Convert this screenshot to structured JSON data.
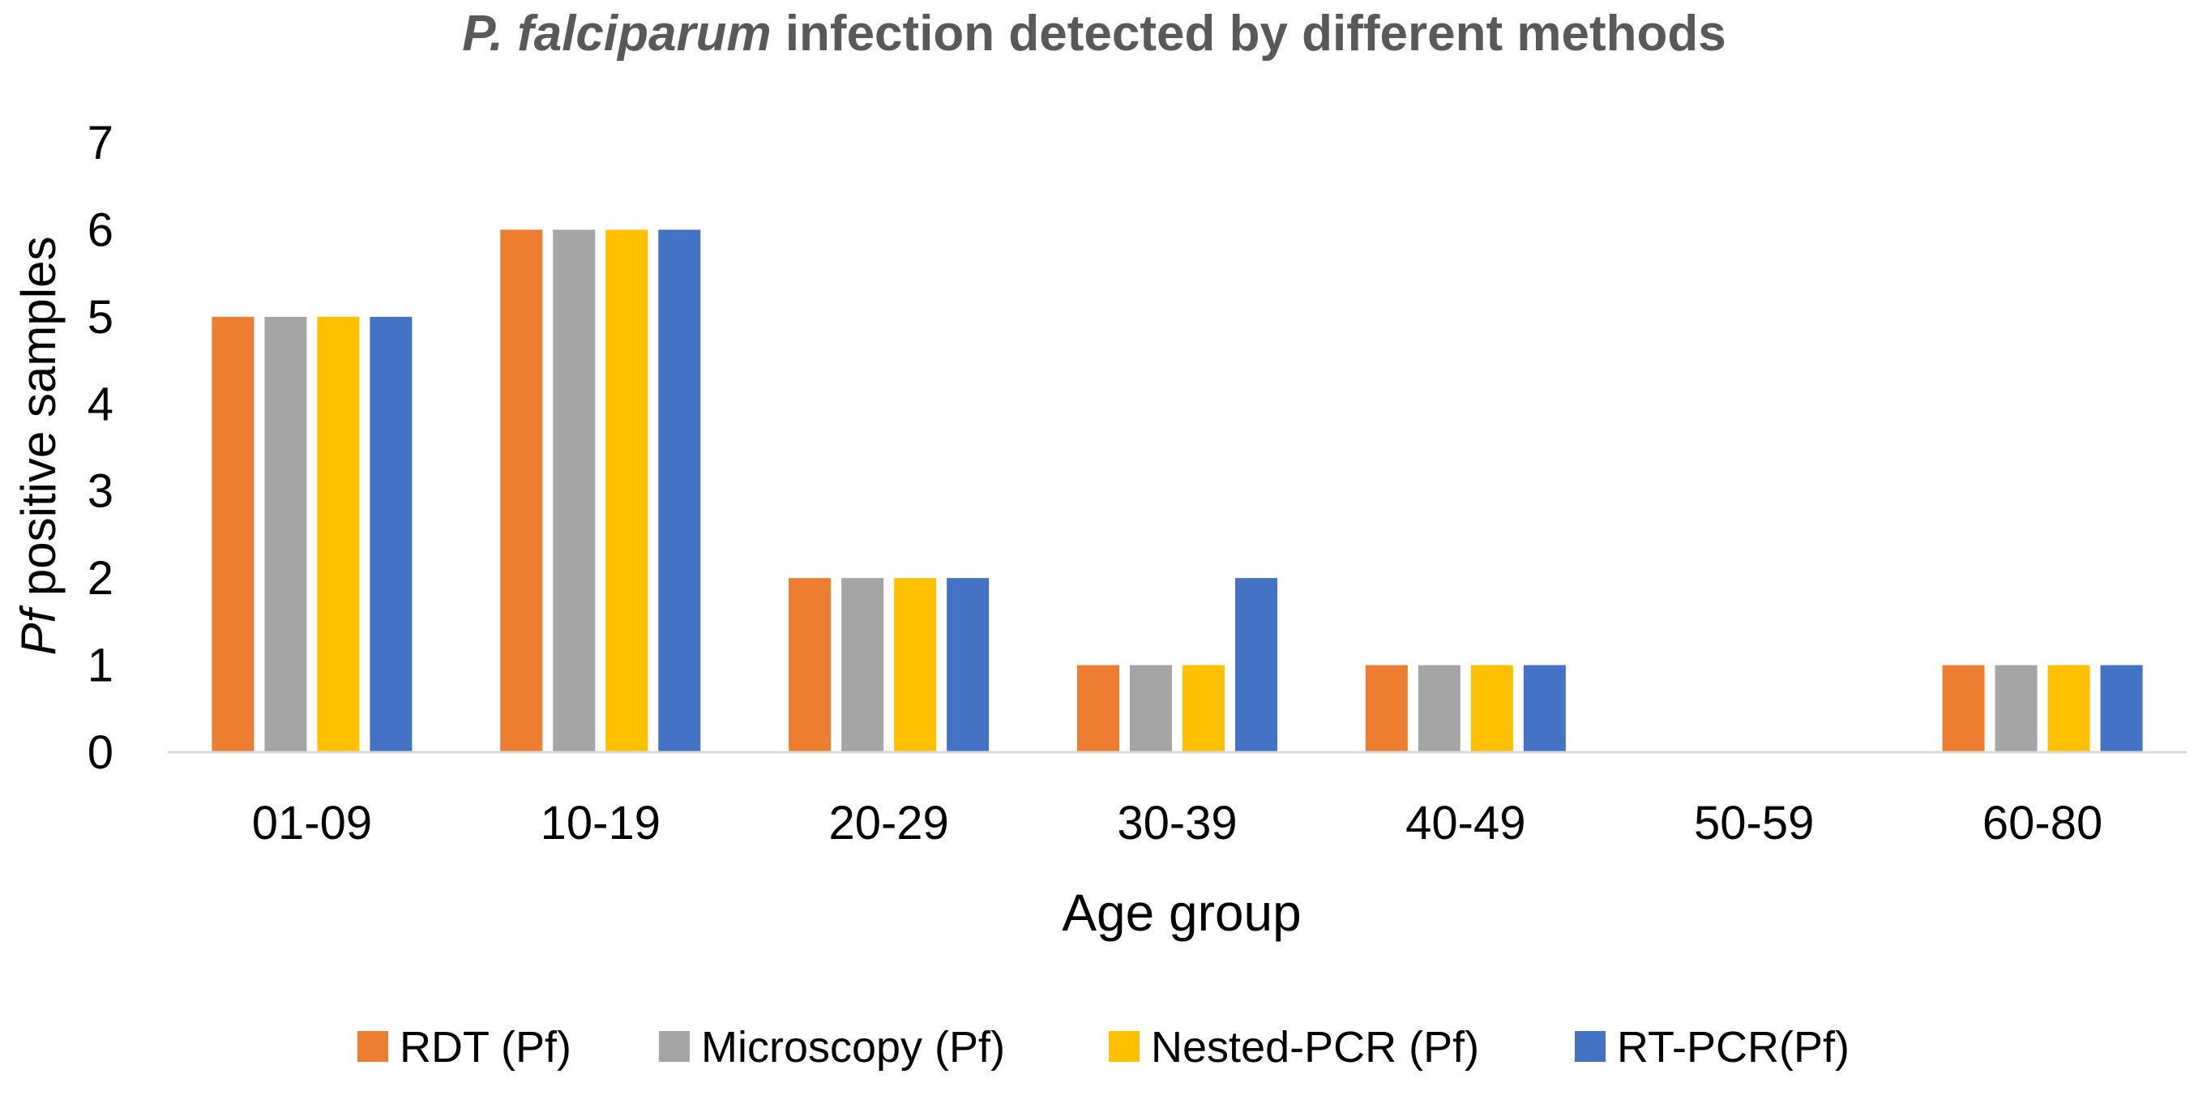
{
  "chart_data": {
    "type": "bar",
    "title_italic": "P. falciparum",
    "title_rest": " infection detected by different methods",
    "xlabel": "Age group",
    "ylabel_italic": "Pf",
    "ylabel_rest": " positive samples",
    "ylim": [
      0,
      7
    ],
    "yticks": [
      "0",
      "1",
      "2",
      "3",
      "4",
      "5",
      "6",
      "7"
    ],
    "categories": [
      "01-09",
      "10-19",
      "20-29",
      "30-39",
      "40-49",
      "50-59",
      "60-80"
    ],
    "series": [
      {
        "name": "RDT (Pf)",
        "color": "#ED7D31",
        "values": [
          5,
          6,
          2,
          1,
          1,
          0,
          1
        ]
      },
      {
        "name": "Microscopy (Pf)",
        "color": "#A5A5A5",
        "values": [
          5,
          6,
          2,
          1,
          1,
          0,
          1
        ]
      },
      {
        "name": "Nested-PCR (Pf)",
        "color": "#FFC000",
        "values": [
          5,
          6,
          2,
          1,
          1,
          0,
          1
        ]
      },
      {
        "name": "RT-PCR(Pf)",
        "color": "#4472C4",
        "values": [
          5,
          6,
          2,
          2,
          1,
          0,
          1
        ]
      }
    ],
    "legend_position": "bottom",
    "grid": false
  }
}
